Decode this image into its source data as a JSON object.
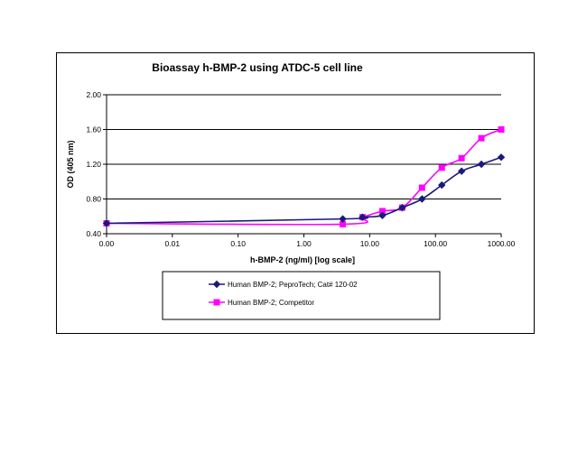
{
  "chart_data": {
    "type": "line",
    "title": "Bioassay h-BMP-2 using ATDC-5 cell line",
    "xlabel": "h-BMP-2 (ng/ml) [log scale]",
    "ylabel": "OD (405 nm)",
    "x_scale": "log",
    "ylim": [
      0.4,
      2.0
    ],
    "xlim": [
      0.001,
      1000
    ],
    "x_tick_labels": [
      "0.00",
      "0.01",
      "0.10",
      "1.00",
      "10.00",
      "100.00",
      "1000.00"
    ],
    "x_tick_values": [
      0.001,
      0.01,
      0.1,
      1,
      10,
      100,
      1000
    ],
    "y_tick_labels": [
      "0.40",
      "0.80",
      "1.20",
      "1.60",
      "2.00"
    ],
    "y_tick_values": [
      0.4,
      0.8,
      1.2,
      1.6,
      2.0
    ],
    "grid": "horizontal major gridlines",
    "legend_position": "bottom",
    "series": [
      {
        "name": "Human BMP-2; PeproTech; Cat# 120-02",
        "color": "#1a1a7a",
        "marker": "diamond",
        "x": [
          0.001,
          3.9,
          7.8,
          15.6,
          31.25,
          62.5,
          125,
          250,
          500,
          1000
        ],
        "y": [
          0.52,
          0.57,
          0.59,
          0.61,
          0.7,
          0.8,
          0.96,
          1.12,
          1.2,
          1.28
        ]
      },
      {
        "name": "Human BMP-2; Competitor",
        "color": "#ff00ff",
        "marker": "square",
        "x": [
          0.001,
          3.9,
          7.8,
          15.6,
          31.25,
          62.5,
          125,
          250,
          500,
          1000
        ],
        "y": [
          0.52,
          0.51,
          0.59,
          0.66,
          0.7,
          0.93,
          1.16,
          1.27,
          1.5,
          1.6
        ]
      }
    ]
  }
}
